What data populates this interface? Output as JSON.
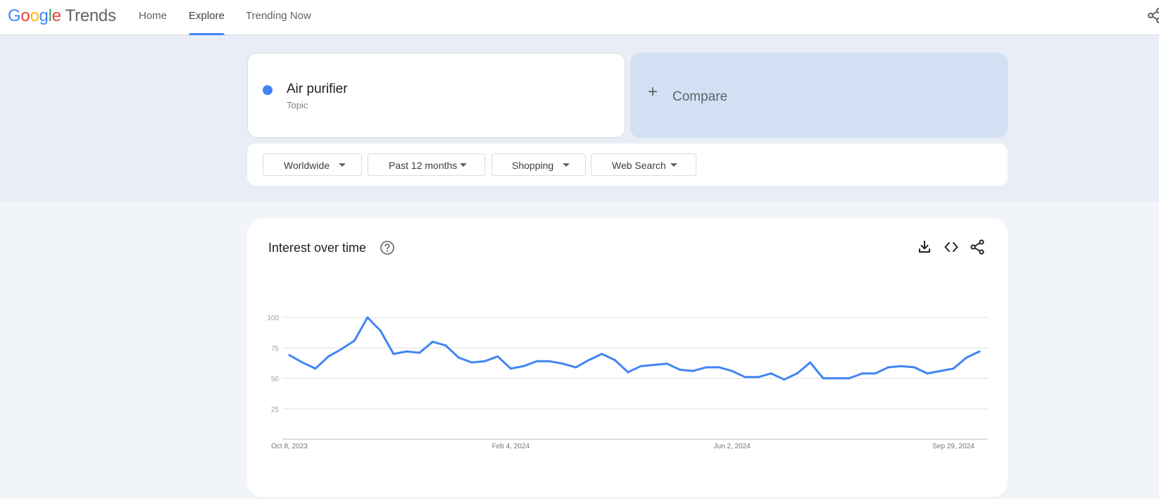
{
  "header": {
    "logo_google_letters": [
      "G",
      "o",
      "o",
      "g",
      "l",
      "e"
    ],
    "logo_trends": "Trends",
    "nav": [
      {
        "label": "Home"
      },
      {
        "label": "Explore",
        "active": true
      },
      {
        "label": "Trending Now"
      }
    ],
    "share_icon": "share-icon"
  },
  "search_term": {
    "name": "Air purifier",
    "type": "Topic",
    "color": "#4285f4"
  },
  "compare": {
    "icon": "plus-icon",
    "label": "Compare"
  },
  "filters": [
    {
      "label": "Worldwide"
    },
    {
      "label": "Past 12 months"
    },
    {
      "label": "Shopping"
    },
    {
      "label": "Web Search"
    }
  ],
  "card": {
    "title": "Interest over time",
    "icons": [
      "help-icon",
      "download-icon",
      "embed-code-icon",
      "share-icon"
    ]
  },
  "chart_data": {
    "type": "line",
    "title": "Interest over time",
    "x_start": "Oct 8, 2023",
    "x_tick_labels": [
      "Oct 8, 2023",
      "Feb 4, 2024",
      "Jun 2, 2024",
      "Sep 29, 2024"
    ],
    "y_tick_labels": [
      "100",
      "75",
      "50",
      "25"
    ],
    "ylim": [
      0,
      100
    ],
    "grid": true,
    "series": [
      {
        "color": "#4285f4",
        "values": [
          69,
          63,
          58,
          68,
          74,
          81,
          100,
          89,
          70,
          72,
          71,
          80,
          77,
          67,
          63,
          64,
          68,
          58,
          60,
          64,
          64,
          62,
          59,
          65,
          70,
          65,
          55,
          60,
          61,
          62,
          57,
          56,
          59,
          59,
          56,
          51,
          51,
          54,
          49,
          54,
          63,
          50,
          50,
          50,
          54,
          54,
          59,
          60,
          59,
          54,
          56,
          58,
          67,
          72
        ]
      }
    ]
  }
}
